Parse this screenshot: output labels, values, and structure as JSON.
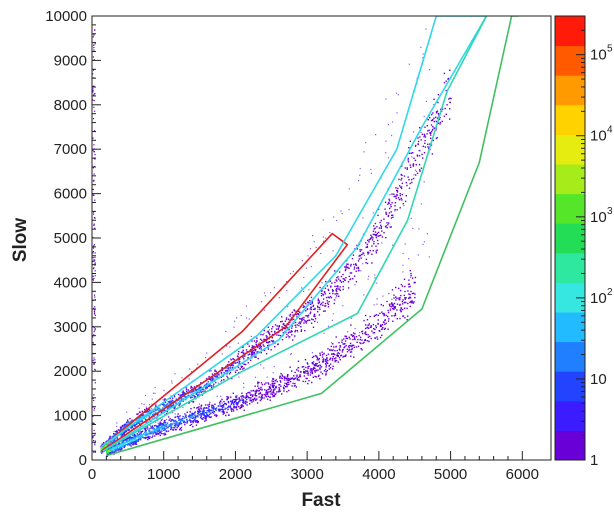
{
  "chart_data": {
    "type": "scatter",
    "subtype": "2d-density-histogram",
    "title": "",
    "xlabel": "Fast",
    "ylabel": "Slow",
    "xlim": [
      0,
      6400
    ],
    "ylim": [
      0,
      10000
    ],
    "x_ticks": [
      0,
      1000,
      2000,
      3000,
      4000,
      5000,
      6000
    ],
    "y_ticks": [
      0,
      1000,
      2000,
      3000,
      4000,
      5000,
      6000,
      7000,
      8000,
      9000,
      10000
    ],
    "grid": false,
    "colorbar": {
      "scale": "log",
      "range": [
        1,
        300000
      ],
      "tick_values": [
        10,
        100,
        1000,
        10000,
        100000
      ],
      "tick_labels": [
        "10",
        "10",
        "10",
        "10",
        "10"
      ],
      "tick_exponents": [
        "",
        "2",
        "3",
        "4",
        "5"
      ],
      "bottom_label": "1",
      "colormap": [
        "#6a00d8",
        "#3b1cff",
        "#2244ff",
        "#1f7fff",
        "#22bbff",
        "#36e6e0",
        "#2ee8a0",
        "#22dd55",
        "#55e62a",
        "#a6ec1a",
        "#e7ec10",
        "#ffd200",
        "#ff9a00",
        "#ff5a00",
        "#ff1a0a"
      ]
    },
    "bands": [
      {
        "name": "upper",
        "points": [
          [
            120,
            250
          ],
          [
            500,
            800
          ],
          [
            1000,
            1200
          ],
          [
            1500,
            1600
          ],
          [
            2000,
            2200
          ],
          [
            2500,
            2800
          ],
          [
            3000,
            3300
          ],
          [
            3500,
            4100
          ],
          [
            4000,
            5200
          ],
          [
            4500,
            6800
          ],
          [
            5000,
            8300
          ]
        ]
      },
      {
        "name": "lower",
        "points": [
          [
            200,
            200
          ],
          [
            800,
            650
          ],
          [
            1400,
            1000
          ],
          [
            2000,
            1300
          ],
          [
            2600,
            1700
          ],
          [
            3000,
            2000
          ],
          [
            3500,
            2500
          ],
          [
            4000,
            3100
          ],
          [
            4500,
            3900
          ]
        ]
      }
    ],
    "cuts": [
      {
        "name": "red",
        "color": "#e02020",
        "points": [
          [
            140,
            300
          ],
          [
            2100,
            2900
          ],
          [
            3350,
            5100
          ],
          [
            3560,
            4850
          ],
          [
            2700,
            3000
          ],
          [
            130,
            200
          ]
        ]
      },
      {
        "name": "cyan",
        "color": "#30d8e8",
        "points": [
          [
            130,
            300
          ],
          [
            2300,
            2800
          ],
          [
            3400,
            4600
          ],
          [
            4250,
            7000
          ],
          [
            4800,
            10000
          ],
          [
            5500,
            10000
          ],
          [
            4600,
            7500
          ],
          [
            3700,
            4800
          ],
          [
            2600,
            2700
          ],
          [
            150,
            200
          ]
        ]
      },
      {
        "name": "teal",
        "color": "#30d8b0",
        "points": [
          [
            200,
            250
          ],
          [
            2100,
            2000
          ],
          [
            3700,
            3300
          ],
          [
            4400,
            5400
          ],
          [
            4950,
            8300
          ],
          [
            5500,
            10000
          ]
        ]
      },
      {
        "name": "green",
        "color": "#40c060",
        "points": [
          [
            200,
            100
          ],
          [
            3200,
            1500
          ],
          [
            4600,
            3400
          ],
          [
            5400,
            6700
          ],
          [
            5850,
            10000
          ],
          [
            5950,
            10000
          ]
        ]
      }
    ]
  }
}
